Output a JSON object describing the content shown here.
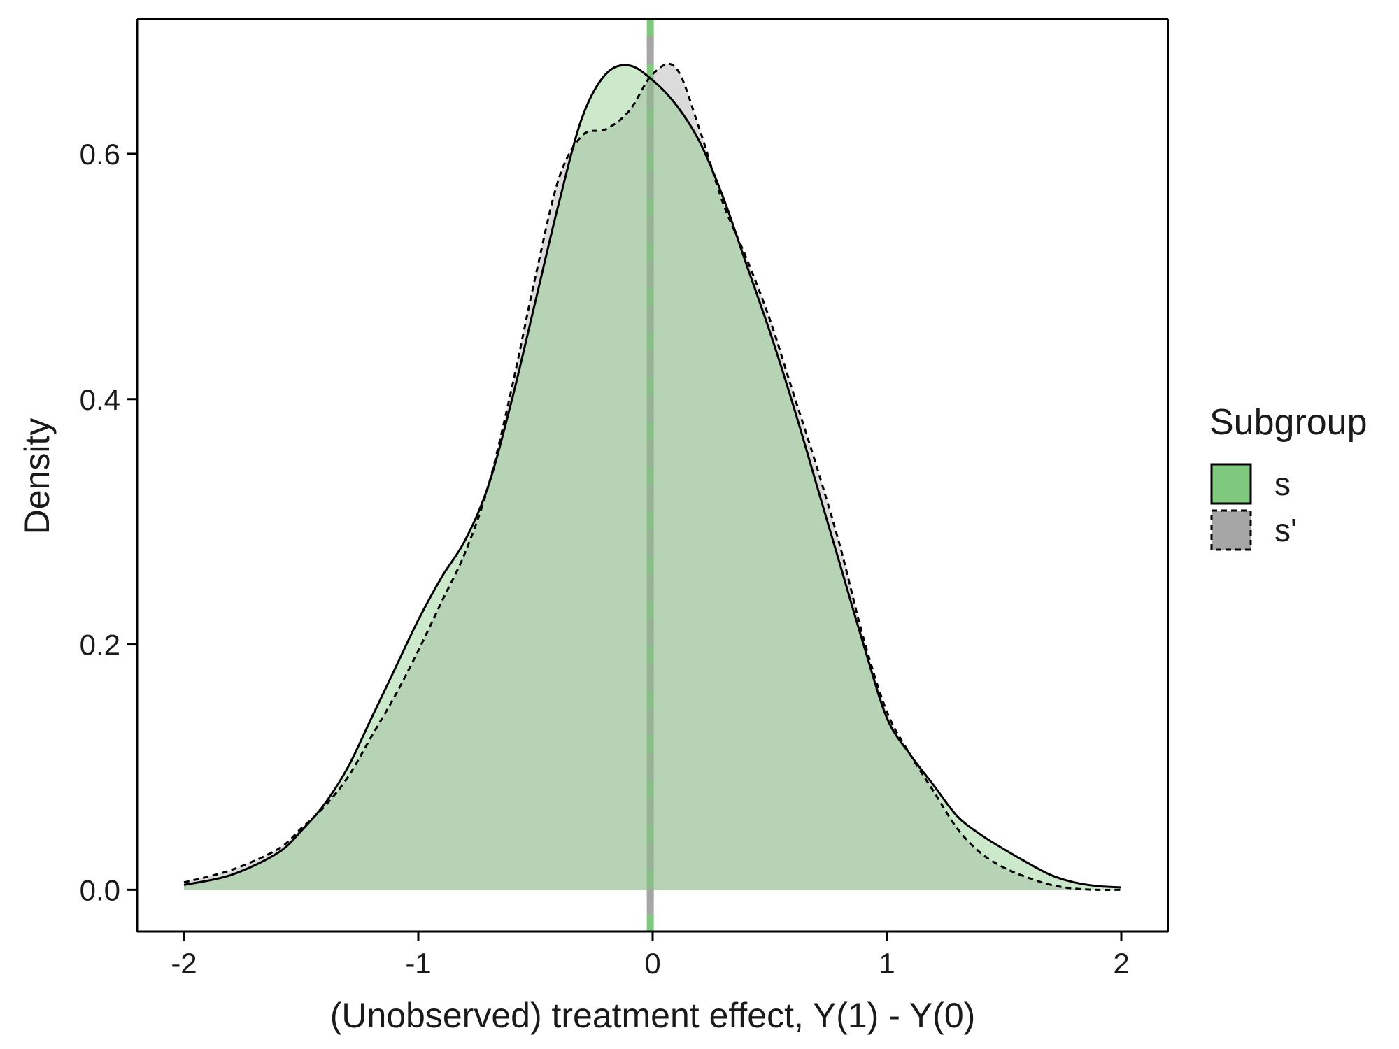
{
  "chart_data": {
    "type": "area",
    "title": "",
    "xlabel": "(Unobserved) treatment effect, Y(1) - Y(0)",
    "ylabel": "Density",
    "xlim": [
      -2.2,
      2.2
    ],
    "ylim": [
      -0.034,
      0.71
    ],
    "x_ticks": [
      -2,
      -1,
      0,
      1,
      2
    ],
    "x_tick_labels": [
      "-2",
      "-1",
      "0",
      "1",
      "2"
    ],
    "y_ticks": [
      0.0,
      0.2,
      0.4,
      0.6
    ],
    "y_tick_labels": [
      "0.0",
      "0.2",
      "0.4",
      "0.6"
    ],
    "grid": false,
    "legend": {
      "title": "Subgroup",
      "position": "right"
    },
    "vlines": [
      {
        "x": -0.01,
        "color": "#7fc97f",
        "series": "s"
      },
      {
        "x": -0.01,
        "color": "#a6a6a6",
        "series": "s'"
      }
    ],
    "series": [
      {
        "name": "s",
        "fill": "#7fc97f",
        "line_style": "solid",
        "x": [
          -2.0,
          -1.8,
          -1.6,
          -1.5,
          -1.4,
          -1.3,
          -1.2,
          -1.1,
          -1.0,
          -0.9,
          -0.8,
          -0.7,
          -0.6,
          -0.5,
          -0.4,
          -0.3,
          -0.2,
          -0.1,
          0.0,
          0.1,
          0.2,
          0.3,
          0.4,
          0.5,
          0.6,
          0.7,
          0.8,
          0.9,
          1.0,
          1.1,
          1.2,
          1.3,
          1.4,
          1.5,
          1.6,
          1.7,
          1.8,
          1.9,
          2.0
        ],
        "y": [
          0.004,
          0.012,
          0.03,
          0.048,
          0.07,
          0.1,
          0.14,
          0.18,
          0.22,
          0.255,
          0.285,
          0.33,
          0.4,
          0.48,
          0.56,
          0.63,
          0.665,
          0.672,
          0.66,
          0.64,
          0.61,
          0.565,
          0.51,
          0.455,
          0.395,
          0.33,
          0.265,
          0.2,
          0.14,
          0.11,
          0.085,
          0.06,
          0.045,
          0.033,
          0.022,
          0.012,
          0.006,
          0.003,
          0.002
        ]
      },
      {
        "name": "s'",
        "fill": "#a6a6a6",
        "line_style": "dashed",
        "x": [
          -2.0,
          -1.8,
          -1.6,
          -1.5,
          -1.4,
          -1.3,
          -1.2,
          -1.1,
          -1.0,
          -0.9,
          -0.8,
          -0.7,
          -0.6,
          -0.5,
          -0.4,
          -0.3,
          -0.2,
          -0.1,
          0.0,
          0.1,
          0.2,
          0.3,
          0.4,
          0.5,
          0.6,
          0.7,
          0.8,
          0.9,
          1.0,
          1.1,
          1.2,
          1.3,
          1.4,
          1.5,
          1.6,
          1.7,
          1.8,
          1.9,
          2.0
        ],
        "y": [
          0.006,
          0.016,
          0.033,
          0.05,
          0.068,
          0.092,
          0.125,
          0.158,
          0.195,
          0.235,
          0.275,
          0.33,
          0.41,
          0.5,
          0.58,
          0.615,
          0.62,
          0.635,
          0.665,
          0.67,
          0.62,
          0.56,
          0.515,
          0.465,
          0.405,
          0.345,
          0.28,
          0.205,
          0.145,
          0.11,
          0.08,
          0.05,
          0.03,
          0.018,
          0.01,
          0.004,
          0.001,
          0.0,
          0.0
        ]
      }
    ]
  }
}
